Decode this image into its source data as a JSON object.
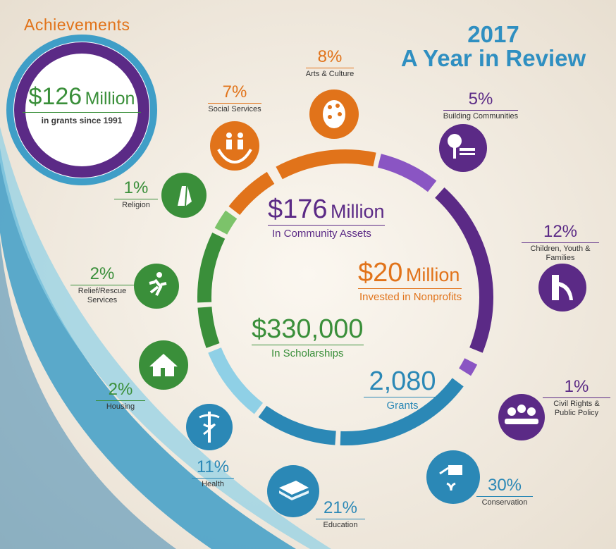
{
  "header": {
    "section_label": "Achievements",
    "year": "2017",
    "title": "A Year in Review"
  },
  "grants_since": {
    "amount": "$126",
    "unit": "Million",
    "caption": "in grants since 1991"
  },
  "stats": {
    "assets": {
      "amount": "$176",
      "unit": "Million",
      "caption": "In Community Assets"
    },
    "nonprofits": {
      "amount": "$20",
      "unit": "Million",
      "caption": "Invested in Nonprofits"
    },
    "scholarships": {
      "amount": "$330,000",
      "caption": "In Scholarships"
    },
    "grants": {
      "amount": "2,080",
      "caption": "Grants"
    }
  },
  "colors": {
    "orange": "#e1731a",
    "purple": "#5b2a86",
    "violet": "#8a55c3",
    "green": "#3a8f3a",
    "light_green": "#7cc36a",
    "blue": "#2b88b6",
    "light_blue": "#8fd0e6",
    "title_blue": "#2f8fc1"
  },
  "chart_data": {
    "type": "pie",
    "style": "segmented ring",
    "unit": "%",
    "slices": [
      {
        "label": "Arts & Culture",
        "value": 8,
        "pct": "8%",
        "group": "orange",
        "icon": "palette-icon"
      },
      {
        "label": "Building Communities",
        "value": 5,
        "pct": "5%",
        "group": "violet",
        "icon": "park-bench-icon"
      },
      {
        "label": "Children, Youth & Families",
        "value": 12,
        "pct": "12%",
        "group": "purple",
        "icon": "playground-slide-icon"
      },
      {
        "label": "Civil Rights & Public Policy",
        "value": 1,
        "pct": "1%",
        "group": "violet",
        "icon": "people-meeting-icon"
      },
      {
        "label": "Conservation",
        "value": 30,
        "pct": "30%",
        "group": "blue",
        "icon": "watering-can-icon"
      },
      {
        "label": "Education",
        "value": 21,
        "pct": "21%",
        "group": "blue",
        "icon": "book-icon"
      },
      {
        "label": "Health",
        "value": 11,
        "pct": "11%",
        "group": "light_blue",
        "icon": "caduceus-icon"
      },
      {
        "label": "Housing",
        "value": 2,
        "pct": "2%",
        "group": "green",
        "icon": "house-icon"
      },
      {
        "label": "Relief/Rescue Services",
        "value": 2,
        "pct": "2%",
        "group": "green",
        "icon": "running-person-icon"
      },
      {
        "label": "Religion",
        "value": 1,
        "pct": "1%",
        "group": "light_green",
        "icon": "praying-hands-icon"
      },
      {
        "label": "Social Services",
        "value": 7,
        "pct": "7%",
        "group": "orange",
        "icon": "family-hands-icon"
      }
    ]
  }
}
